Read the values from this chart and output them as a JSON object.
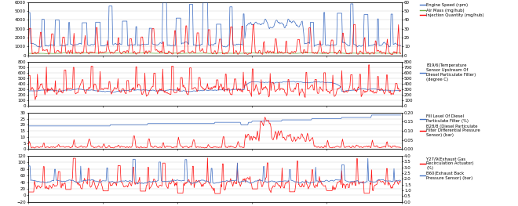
{
  "subplot1": {
    "left_ylim": [
      0,
      6000
    ],
    "right_ylim": [
      0,
      60
    ],
    "left_yticks": [
      0,
      1000,
      2000,
      3000,
      4000,
      5000,
      6000
    ],
    "right_yticks": [
      0,
      10,
      20,
      30,
      40,
      50,
      60
    ],
    "legend": [
      {
        "label": "Engine Speed (rpm)",
        "color": "#4472C4"
      },
      {
        "label": "Air Mass (mg/hub)",
        "color": "#70AD47"
      },
      {
        "label": "Injection Quantity (mg/hub)",
        "color": "#FF0000"
      }
    ]
  },
  "subplot2": {
    "left_ylim": [
      0,
      800
    ],
    "left_yticks": [
      0,
      100,
      200,
      300,
      400,
      500,
      600,
      700,
      800
    ],
    "legend": [
      {
        "label": "B19/6(Temperature\nSensor Upstream Of\nDiesel Particulate Filter)\n(degree C)",
        "color": "#4472C4"
      }
    ]
  },
  "subplot3": {
    "left_ylim": [
      0,
      30
    ],
    "right_ylim": [
      0,
      0.2
    ],
    "left_yticks": [
      0,
      5,
      10,
      15,
      20,
      25,
      30
    ],
    "right_yticks": [
      0,
      0.05,
      0.1,
      0.15,
      0.2
    ],
    "legend": [
      {
        "label": "Fill Level Of Diesel\nParticulate Filter (%)",
        "color": "#4472C4"
      },
      {
        "label": "B28/8 (Diesel Particulate\nFilter Differential Pressure\nSensor) (bar)",
        "color": "#FF0000"
      }
    ]
  },
  "subplot4": {
    "left_ylim": [
      -20,
      120
    ],
    "right_ylim": [
      0,
      4
    ],
    "left_yticks": [
      -20,
      0,
      20,
      40,
      60,
      80,
      100,
      120
    ],
    "right_yticks": [
      0,
      0.5,
      1.0,
      1.5,
      2.0,
      2.5,
      3.0,
      3.5,
      4.0
    ],
    "legend": [
      {
        "label": "Y27/9(Exhaust Gas\nRecirculation Actuator)\n(%)",
        "color": "#FF0000"
      },
      {
        "label": "B60(Exhaust Back\nPressure Sensor) (bar)",
        "color": "#4472C4"
      }
    ]
  },
  "bg_color": "#FFFFFF",
  "grid_color": "#CCCCCC",
  "n_points": 500
}
